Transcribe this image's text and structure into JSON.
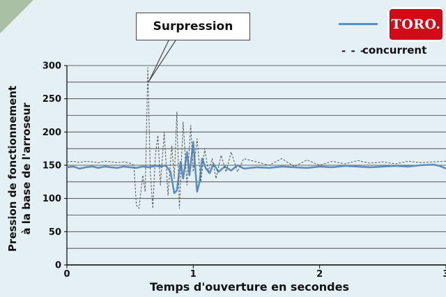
{
  "chart_data": {
    "type": "line",
    "title": "",
    "xlabel": "Temps d'ouverture en secondes",
    "ylabel_lines": [
      "Pression de fonctionnement",
      "à la base de l'arroseur"
    ],
    "xlim": [
      0,
      3
    ],
    "ylim": [
      0,
      300
    ],
    "x_ticks": [
      0,
      1,
      2,
      3
    ],
    "y_ticks": [
      0,
      50,
      100,
      150,
      200,
      250,
      300
    ],
    "grid": "horizontal",
    "legend_placement": "top-right",
    "annotation": {
      "text": "Surpression",
      "x": 0.63,
      "y": 290
    },
    "series": [
      {
        "name": "TORO",
        "style": "solid",
        "color": "#5b8fc2",
        "x": [
          0,
          0.05,
          0.1,
          0.15,
          0.2,
          0.25,
          0.3,
          0.35,
          0.4,
          0.45,
          0.5,
          0.55,
          0.6,
          0.65,
          0.7,
          0.75,
          0.78,
          0.82,
          0.85,
          0.87,
          0.9,
          0.92,
          0.95,
          0.97,
          1.0,
          1.03,
          1.05,
          1.07,
          1.1,
          1.13,
          1.16,
          1.2,
          1.25,
          1.3,
          1.35,
          1.4,
          1.5,
          1.6,
          1.7,
          1.8,
          1.9,
          2.0,
          2.1,
          2.2,
          2.3,
          2.4,
          2.5,
          2.6,
          2.7,
          2.8,
          2.9,
          2.95,
          3.0
        ],
        "values": [
          147,
          148,
          145,
          147,
          148,
          146,
          148,
          147,
          146,
          148,
          147,
          146,
          148,
          147,
          149,
          148,
          150,
          140,
          108,
          112,
          155,
          130,
          170,
          135,
          185,
          110,
          125,
          160,
          145,
          138,
          152,
          140,
          148,
          142,
          150,
          145,
          147,
          146,
          148,
          147,
          146,
          148,
          147,
          149,
          148,
          147,
          148,
          149,
          148,
          150,
          151,
          149,
          145
        ]
      },
      {
        "name": "concurrent",
        "style": "dashed",
        "color": "#555555",
        "x": [
          0,
          0.05,
          0.1,
          0.15,
          0.2,
          0.25,
          0.3,
          0.35,
          0.4,
          0.45,
          0.5,
          0.53,
          0.55,
          0.57,
          0.6,
          0.62,
          0.64,
          0.66,
          0.68,
          0.7,
          0.72,
          0.74,
          0.77,
          0.8,
          0.83,
          0.85,
          0.87,
          0.89,
          0.92,
          0.95,
          0.98,
          1.0,
          1.03,
          1.06,
          1.09,
          1.12,
          1.15,
          1.18,
          1.22,
          1.26,
          1.3,
          1.35,
          1.4,
          1.5,
          1.6,
          1.7,
          1.8,
          1.9,
          2.0,
          2.1,
          2.2,
          2.3,
          2.4,
          2.5,
          2.6,
          2.7,
          2.8,
          2.9,
          3.0
        ],
        "values": [
          155,
          156,
          154,
          156,
          155,
          154,
          156,
          155,
          154,
          155,
          153,
          150,
          90,
          85,
          135,
          110,
          297,
          140,
          85,
          165,
          195,
          120,
          200,
          105,
          180,
          130,
          230,
          85,
          215,
          120,
          210,
          140,
          190,
          125,
          175,
          140,
          160,
          130,
          165,
          140,
          170,
          140,
          160,
          155,
          150,
          160,
          148,
          158,
          150,
          156,
          152,
          157,
          153,
          155,
          152,
          156,
          154,
          155,
          156
        ]
      }
    ]
  },
  "legend": {
    "logo_text": "TORO.",
    "dash_glyph": "- - -",
    "competitor_label": "concurrent"
  },
  "colors": {
    "background": "#e4f0f4",
    "toro_series": "#5b8fc2",
    "competitor_series": "#555555",
    "logo_red": "#d20a17"
  }
}
